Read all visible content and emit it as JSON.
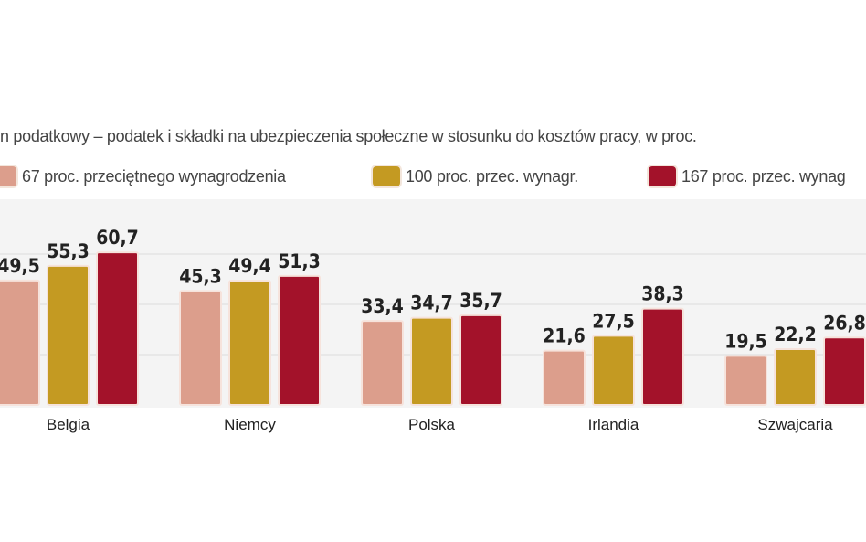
{
  "chart_data": {
    "type": "bar",
    "title": "",
    "subtitle": "n podatkowy – podatek i składki na ubezpieczenia społeczne w stosunku do kosztów pracy, w proc.",
    "categories": [
      "Belgia",
      "Niemcy",
      "Polska",
      "Irlandia",
      "Szwajcaria"
    ],
    "series": [
      {
        "name": "67 proc. przeciętnego wynagrodzenia",
        "color": "#dc9e8c",
        "values": [
          49.5,
          45.3,
          33.4,
          21.6,
          19.5
        ],
        "labels": [
          "49,5",
          "45,3",
          "33,4",
          "21,6",
          "19,5"
        ]
      },
      {
        "name": "100 proc. przec. wynagr.",
        "color": "#c49a22",
        "values": [
          55.3,
          49.4,
          34.7,
          27.5,
          22.2
        ],
        "labels": [
          "55,3",
          "49,4",
          "34,7",
          "27,5",
          "22,2"
        ]
      },
      {
        "name": "167 proc. przec. wynag",
        "color": "#a3122a",
        "values": [
          60.7,
          51.3,
          35.7,
          38.3,
          26.8
        ],
        "labels": [
          "60,7",
          "51,3",
          "35,7",
          "38,3",
          "26,8"
        ]
      }
    ],
    "ylim": [
      0,
      65
    ],
    "gridlines": [
      20,
      40,
      60
    ],
    "grid": true,
    "legend": "top",
    "xlabel": "",
    "ylabel": ""
  }
}
